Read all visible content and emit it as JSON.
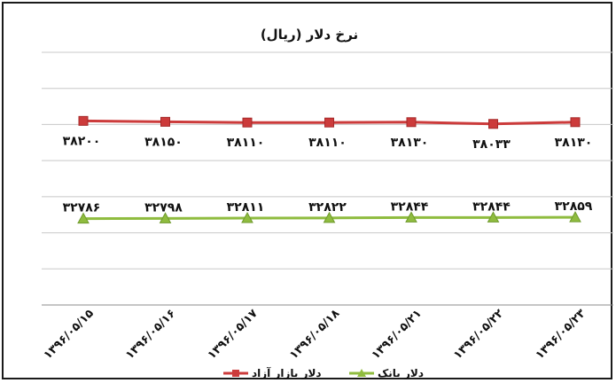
{
  "chart_data": {
    "type": "line",
    "title": "نرخ دلار (ریال)",
    "categories": [
      "۱۳۹۶/۰۵/۱۵",
      "۱۳۹۶/۰۵/۱۶",
      "۱۳۹۶/۰۵/۱۷",
      "۱۳۹۶/۰۵/۱۸",
      "۱۳۹۶/۰۵/۲۱",
      "۱۳۹۶/۰۵/۲۲",
      "۱۳۹۶/۰۵/۲۳"
    ],
    "series": [
      {
        "name": "دلار بازار آزاد",
        "color": "#cc3b3b",
        "marker": "square",
        "values": [
          38200,
          38150,
          38110,
          38110,
          38130,
          38033,
          38130
        ],
        "labels": [
          "۳۸۲۰۰",
          "۳۸۱۵۰",
          "۳۸۱۱۰",
          "۳۸۱۱۰",
          "۳۸۱۳۰",
          "۳۸۰۳۳",
          "۳۸۱۳۰"
        ]
      },
      {
        "name": "دلار بانک",
        "color": "#8fbc3f",
        "marker": "triangle",
        "values": [
          32786,
          32798,
          32811,
          32822,
          32844,
          32844,
          32859
        ],
        "labels": [
          "۳۲۷۸۶",
          "۳۲۷۹۸",
          "۳۲۸۱۱",
          "۳۲۸۲۲",
          "۳۲۸۴۴",
          "۳۲۸۴۴",
          "۳۲۸۵۹"
        ]
      }
    ],
    "ylim": [
      28000,
      42000
    ],
    "gridlines": true,
    "y_axis_labels": false,
    "legend_position": "bottom"
  }
}
